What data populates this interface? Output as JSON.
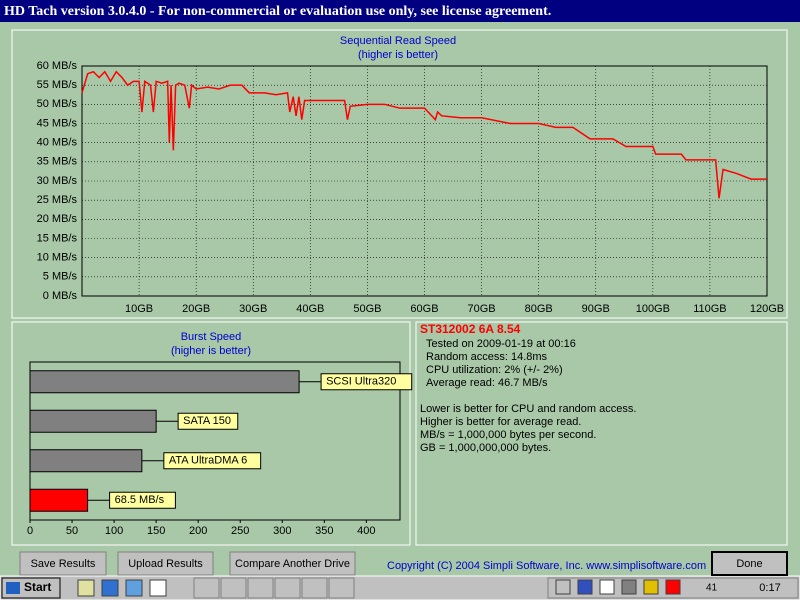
{
  "window": {
    "title": "HD Tach version 3.0.4.0  - For non-commercial or evaluation use only, see license agreement."
  },
  "chart_data": [
    {
      "type": "line",
      "title": "Sequential Read Speed",
      "subtitle": "(higher is better)",
      "color": "#ff0000",
      "x": [
        0,
        1,
        2,
        3,
        4,
        5,
        6,
        7,
        8,
        9,
        10,
        10.5,
        11,
        12,
        12.5,
        13,
        14,
        15,
        15.3,
        15.6,
        16,
        16.4,
        17,
        18,
        18.8,
        19.2,
        20,
        22,
        24,
        26,
        28,
        29.3,
        32,
        34,
        36,
        36.4,
        37,
        37.5,
        38,
        38.5,
        39,
        42,
        46,
        46.5,
        47,
        50,
        53,
        55.7,
        60,
        61.9,
        62.3,
        63,
        66.3,
        70,
        75,
        80,
        83,
        86,
        89,
        93,
        95.3,
        100,
        100.5,
        105,
        105.8,
        111,
        111.6,
        112.3,
        114.6,
        117.2,
        120
      ],
      "values": [
        53,
        58,
        58.5,
        57,
        58.5,
        56,
        58.5,
        57,
        55,
        56,
        56,
        48,
        56,
        55,
        48,
        56,
        55.5,
        56,
        40,
        55,
        38,
        55,
        55.5,
        55,
        49,
        55,
        54,
        54.5,
        54,
        55,
        55,
        53,
        53,
        52.5,
        53,
        48,
        52,
        47,
        52,
        46,
        51,
        51,
        51,
        46,
        49.5,
        50,
        50,
        49,
        49,
        46,
        48,
        47,
        46.5,
        46.5,
        45,
        45,
        44,
        44,
        41,
        41,
        39,
        39,
        37,
        37,
        35.5,
        35.5,
        25.5,
        33,
        32,
        30.5,
        30.5
      ],
      "xlim": [
        0,
        120
      ],
      "xticks": [
        {
          "value": 10,
          "label": "10GB"
        },
        {
          "value": 20,
          "label": "20GB"
        },
        {
          "value": 30,
          "label": "30GB"
        },
        {
          "value": 40,
          "label": "40GB"
        },
        {
          "value": 50,
          "label": "50GB"
        },
        {
          "value": 60,
          "label": "60GB"
        },
        {
          "value": 70,
          "label": "70GB"
        },
        {
          "value": 80,
          "label": "80GB"
        },
        {
          "value": 90,
          "label": "90GB"
        },
        {
          "value": 100,
          "label": "100GB"
        },
        {
          "value": 110,
          "label": "110GB"
        },
        {
          "value": 120,
          "label": "120GB"
        }
      ],
      "ylim": [
        0,
        60
      ],
      "yticks": [
        {
          "value": 0,
          "label": "0 MB/s"
        },
        {
          "value": 5,
          "label": "5 MB/s"
        },
        {
          "value": 10,
          "label": "10 MB/s"
        },
        {
          "value": 15,
          "label": "15 MB/s"
        },
        {
          "value": 20,
          "label": "20 MB/s"
        },
        {
          "value": 25,
          "label": "25 MB/s"
        },
        {
          "value": 30,
          "label": "30 MB/s"
        },
        {
          "value": 35,
          "label": "35 MB/s"
        },
        {
          "value": 40,
          "label": "40 MB/s"
        },
        {
          "value": 45,
          "label": "45 MB/s"
        },
        {
          "value": 50,
          "label": "50 MB/s"
        },
        {
          "value": 55,
          "label": "55 MB/s"
        },
        {
          "value": 60,
          "label": "60 MB/s"
        }
      ],
      "grid": true
    },
    {
      "type": "hbar",
      "title": "Burst Speed",
      "subtitle": "(higher is better)",
      "categories": [
        "SCSI Ultra320",
        "SATA 150",
        "ATA UltraDMA 6",
        null
      ],
      "values": [
        320,
        150,
        133,
        68.5
      ],
      "value_labels": [
        null,
        null,
        null,
        "68.5 MB/s"
      ],
      "colors": [
        "#808080",
        "#808080",
        "#808080",
        "#ff0000"
      ],
      "xlim": [
        0,
        440
      ],
      "xticks": [
        0,
        50,
        100,
        150,
        200,
        250,
        300,
        350,
        400
      ]
    }
  ],
  "info": {
    "drive": "ST312002 6A 8.54",
    "details": [
      "Tested on 2009-01-19 at 00:16",
      "Random access: 14.8ms",
      "CPU utilization: 2% (+/- 2%)",
      "Average read: 46.7 MB/s"
    ],
    "notes": [
      "Lower is better for CPU and random access.",
      "Higher is better for average read.",
      "MB/s = 1,000,000 bytes per second.",
      "GB = 1,000,000,000 bytes."
    ]
  },
  "buttons": [
    "Save Results",
    "Upload Results",
    "Compare Another Drive",
    "Done"
  ],
  "copyright": "Copyright (C) 2004 Simpli Software, Inc. www.simplisoftware.com",
  "taskbar": {
    "start": "Start",
    "tray_label": "41",
    "clock": "0:17"
  }
}
